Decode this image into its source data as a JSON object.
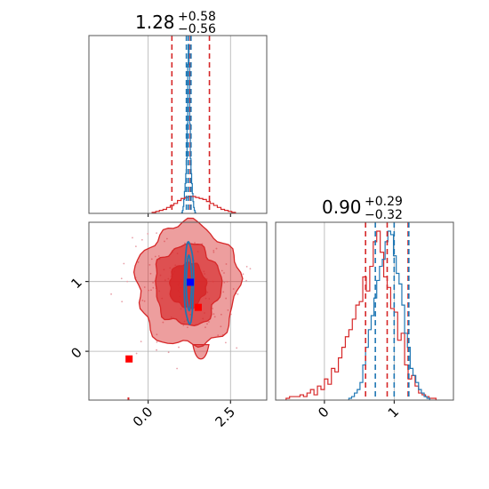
{
  "chart_data": {
    "type": "corner",
    "parameters": [
      {
        "title": {
          "value": "1.28",
          "plus": "+0.58",
          "minus": "−0.56"
        },
        "range": [
          -1.8,
          3.6
        ],
        "ticks": [
          0.0,
          2.5
        ],
        "tick_labels": [
          "0.0",
          "2.5"
        ],
        "quantiles": {
          "red": [
            0.72,
            1.28,
            1.86
          ],
          "blue": [
            1.16,
            1.22,
            1.3
          ]
        },
        "hist_red": {
          "edges_start": 0.12,
          "bin_width": 0.11,
          "counts": [
            1,
            2,
            3,
            4,
            6,
            8,
            10,
            13,
            15,
            16,
            17,
            17,
            16,
            15,
            14,
            12,
            10,
            8,
            6,
            4,
            3,
            2,
            1
          ]
        },
        "hist_blue": {
          "edges_start": 1.02,
          "bin_width": 0.02,
          "counts": [
            1,
            3,
            7,
            14,
            22,
            30,
            40,
            55,
            90,
            150,
            170,
            150,
            90,
            55,
            40,
            30,
            20,
            12,
            6,
            3,
            1
          ]
        }
      },
      {
        "title": {
          "value": "0.90",
          "plus": "+0.29",
          "minus": "−0.32"
        },
        "range": [
          -0.7,
          1.85
        ],
        "ticks": [
          0,
          1
        ],
        "tick_labels": [
          "0",
          "1"
        ],
        "quantiles": {
          "red": [
            0.59,
            0.9,
            1.2
          ],
          "blue": [
            0.73,
            1.0,
            1.21
          ]
        },
        "hist_red": {
          "edges_start": -0.55,
          "bin_width": 0.05,
          "counts": [
            1,
            2,
            2,
            2,
            3,
            2,
            4,
            6,
            3,
            8,
            6,
            12,
            9,
            18,
            16,
            24,
            30,
            36,
            40,
            46,
            54,
            56,
            70,
            62,
            76,
            90,
            96,
            84,
            70,
            64,
            52,
            50,
            34,
            38,
            20,
            12,
            14,
            8,
            4,
            3,
            2,
            1,
            1
          ]
        },
        "hist_blue": {
          "edges_start": 0.35,
          "bin_width": 0.04,
          "counts": [
            1,
            2,
            4,
            6,
            10,
            20,
            30,
            40,
            48,
            58,
            68,
            76,
            80,
            90,
            96,
            94,
            82,
            72,
            66,
            54,
            38,
            30,
            18,
            14,
            10,
            6,
            4,
            2,
            1
          ]
        }
      }
    ],
    "yaxis_2d": {
      "range": [
        -0.7,
        1.85
      ],
      "ticks": [
        0,
        1
      ],
      "tick_labels": [
        "0",
        "1"
      ]
    },
    "markers": [
      {
        "color": "#0000ff",
        "shape": "square",
        "x": 1.28,
        "y": 0.99
      },
      {
        "color": "#ff0000",
        "shape": "square",
        "x": 1.52,
        "y": 0.63
      },
      {
        "color": "#ff0000",
        "shape": "square",
        "x": -0.58,
        "y": -0.11
      }
    ],
    "contours": {
      "red": {
        "center": [
          1.2,
          0.95
        ],
        "levels": [
          {
            "rx": 1.55,
            "ry": 0.88,
            "opacity": 0.45
          },
          {
            "rx": 1.0,
            "ry": 0.58,
            "opacity": 0.65
          },
          {
            "rx": 0.55,
            "ry": 0.32,
            "opacity": 0.85
          }
        ]
      },
      "blue": {
        "center": [
          1.24,
          0.98
        ],
        "levels": [
          {
            "rx": 0.14,
            "ry": 0.58
          },
          {
            "rx": 0.08,
            "ry": 0.38
          }
        ]
      }
    },
    "colors": {
      "red": "#d62728",
      "blue": "#1f77b4",
      "grid": "#b0b0b0"
    },
    "grid": true
  }
}
